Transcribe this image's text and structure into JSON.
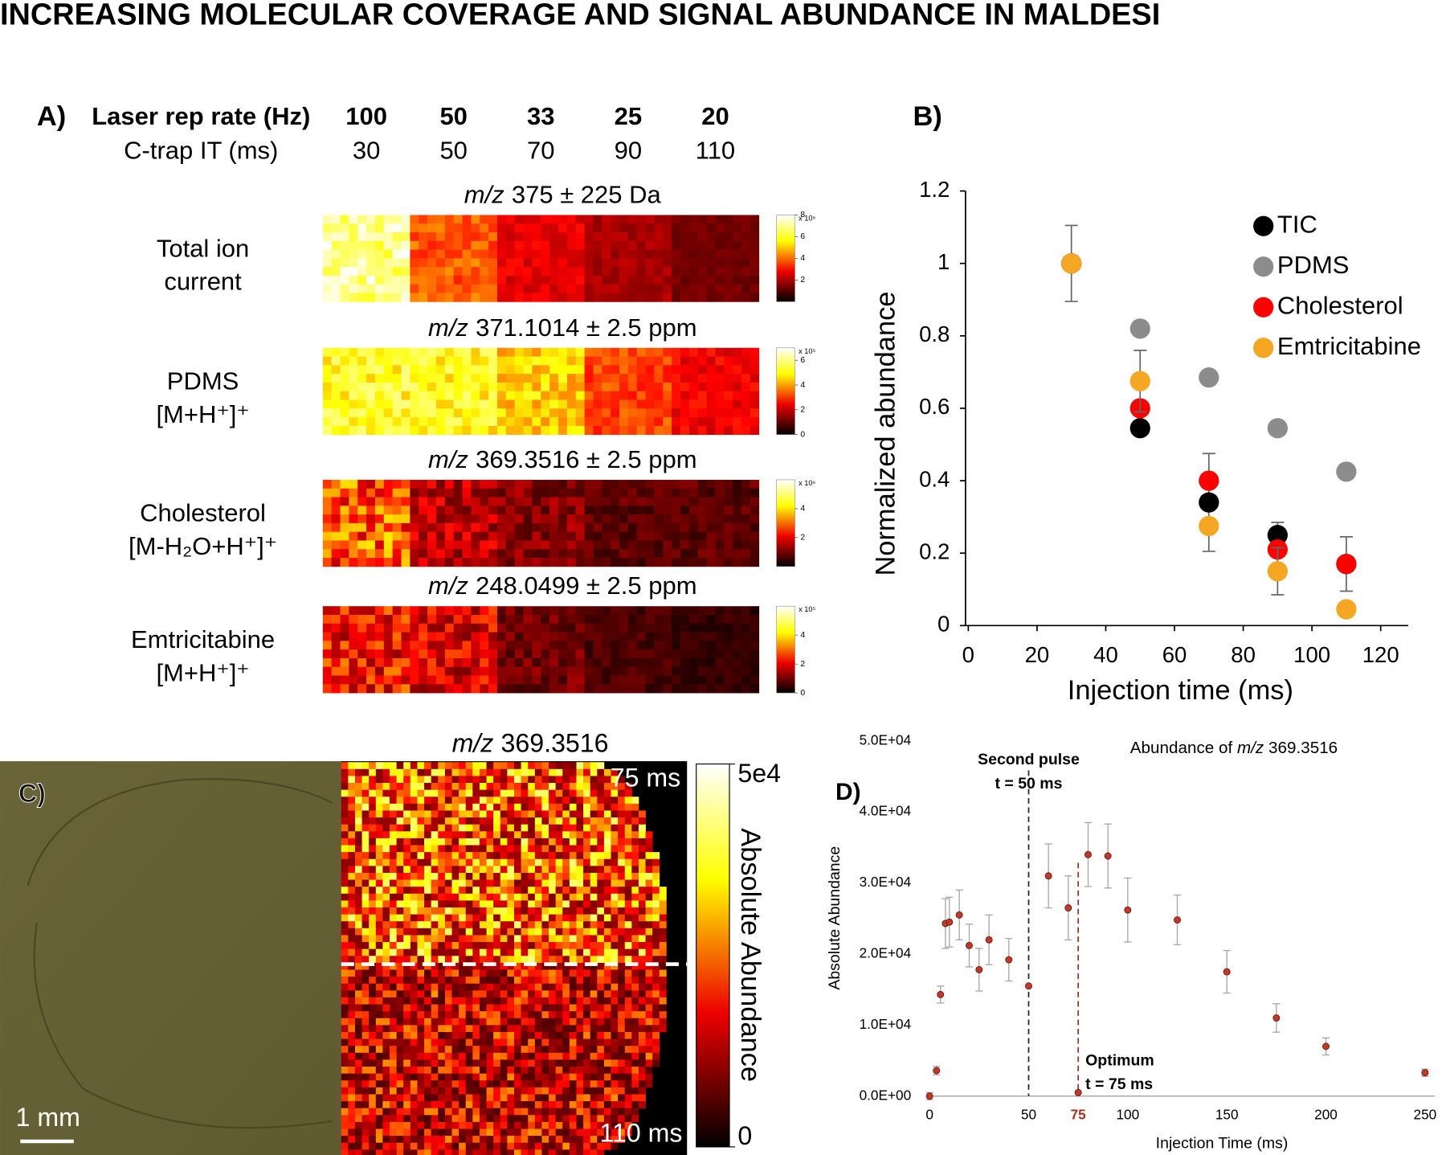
{
  "title": "INCREASING MOLECULAR COVERAGE AND SIGNAL ABUNDANCE IN MALDESI",
  "panel_a": {
    "label": "A)",
    "header_rows": [
      {
        "label": "Laser rep rate (Hz)",
        "values": [
          100,
          50,
          33,
          25,
          20
        ]
      },
      {
        "label": "C-trap IT (ms)",
        "values": [
          30,
          50,
          70,
          90,
          110
        ]
      }
    ],
    "images": [
      {
        "title_italic": "m/z",
        "title": "375 ± 225 Da",
        "label_lines": [
          "Total ion",
          "current"
        ],
        "scale_label": "x 10⁶",
        "clim": [
          0,
          8
        ],
        "cticks": [
          2,
          4,
          6,
          8
        ]
      },
      {
        "title_italic": "m/z",
        "title": "371.1014 ± 2.5 ppm",
        "label_lines": [
          "PDMS",
          "[M+H⁺]⁺"
        ],
        "scale_label": "x 10⁵",
        "clim": [
          0,
          7
        ],
        "cticks": [
          0,
          2,
          4,
          6
        ]
      },
      {
        "title_italic": "m/z",
        "title": "369.3516 ± 2.5 ppm",
        "label_lines": [
          "Cholesterol",
          "[M-H₂O+H⁺]⁺"
        ],
        "scale_label": "x 10⁶",
        "clim": [
          0,
          6
        ],
        "cticks": [
          2,
          4
        ]
      },
      {
        "title_italic": "m/z",
        "title": "248.0499 ± 2.5 ppm",
        "label_lines": [
          "Emtricitabine",
          "[M+H⁺]⁺"
        ],
        "scale_label": "x 10⁵",
        "clim": [
          0,
          6
        ],
        "cticks": [
          0,
          2,
          4
        ]
      }
    ]
  },
  "panel_c": {
    "label": "C)",
    "title_italic": "m/z",
    "title": "369.3516",
    "top_label": "75 ms",
    "bottom_label": "110 ms",
    "scale_bar": "1 mm",
    "colorbar_label": "Absolute Abundance",
    "clim": [
      0,
      50000
    ],
    "cticks": [
      0,
      {
        "value": 50000,
        "label": "5e4"
      }
    ]
  },
  "chart_data": [
    {
      "type": "scatter",
      "panel_label": "B)",
      "x_label": "Injection time (ms)",
      "y_label": "Normalized abundance",
      "x": [
        30,
        50,
        70,
        90,
        110
      ],
      "series": [
        {
          "name": "TIC",
          "color": "#000000",
          "values": [
            1,
            0.545,
            0.34,
            0.25,
            0.17
          ],
          "errors": [
            null,
            null,
            0.135,
            0.035,
            0.075
          ]
        },
        {
          "name": "PDMS",
          "color": "#8c8c8c",
          "values": [
            1,
            0.82,
            0.685,
            0.545,
            0.425
          ]
        },
        {
          "name": "Cholesterol",
          "color": "#ff0000",
          "values": [
            1,
            0.6,
            0.4,
            0.21,
            0.17
          ]
        },
        {
          "name": "Emtricitabine",
          "color": "#f5a623",
          "values": [
            1,
            0.675,
            0.275,
            0.15,
            0.045
          ],
          "errors": [
            0.105,
            0.085,
            null,
            0.065,
            null
          ]
        }
      ],
      "xlim": [
        0,
        128
      ],
      "ylim": [
        0,
        1.2
      ],
      "xticks": [
        0,
        20,
        40,
        60,
        80,
        100,
        120
      ],
      "yticks": [
        0,
        0.2,
        0.4,
        0.6,
        0.8,
        1,
        1.2
      ],
      "legend": "upper right",
      "grid": false
    },
    {
      "type": "scatter",
      "panel_label": "D)",
      "title_prefix": "Abundance of",
      "title_italic": "m/z",
      "title_suffix": "369.3516",
      "x_label": "Injection Time (ms)",
      "y_label": "Absolute Abundance",
      "x": [
        0,
        3.5,
        5.5,
        8,
        10,
        15,
        20,
        25,
        30,
        40,
        50,
        60,
        70,
        75,
        80,
        90,
        100,
        125,
        150,
        175,
        200,
        250
      ],
      "series": [
        {
          "color": "#c0392b",
          "values": [
            0,
            3600,
            14300,
            24300,
            24500,
            25500,
            21200,
            17800,
            22000,
            19200,
            15500,
            31000,
            26500,
            500,
            34000,
            33800,
            26200,
            24800,
            17500,
            11000,
            7000,
            3300
          ],
          "errors": [
            500,
            600,
            1200,
            3500,
            3500,
            3500,
            3000,
            3000,
            3500,
            3000,
            null,
            4500,
            4500,
            null,
            4500,
            4500,
            4500,
            3500,
            3000,
            2000,
            1200,
            500
          ]
        }
      ],
      "xlim": [
        0,
        255
      ],
      "ylim": [
        0,
        50000
      ],
      "xticks": [
        0,
        50,
        100,
        150,
        200,
        250
      ],
      "yticks": [
        {
          "value": 0,
          "label": "0.0E+00"
        },
        {
          "value": 10000,
          "label": "1.0E+04"
        },
        {
          "value": 20000,
          "label": "2.0E+04"
        },
        {
          "value": 30000,
          "label": "3.0E+04"
        },
        {
          "value": 40000,
          "label": "4.0E+04"
        },
        {
          "value": 50000,
          "label": "5.0E+04"
        }
      ],
      "vlines": [
        {
          "x": 50,
          "color": "#222222",
          "label_lines": [
            "Second pulse",
            "t = 50 ms"
          ]
        },
        {
          "x": 75,
          "color": "#a0301c",
          "label_lines": [
            "Optimum",
            "t = 75 ms"
          ]
        }
      ],
      "grid": false
    }
  ]
}
